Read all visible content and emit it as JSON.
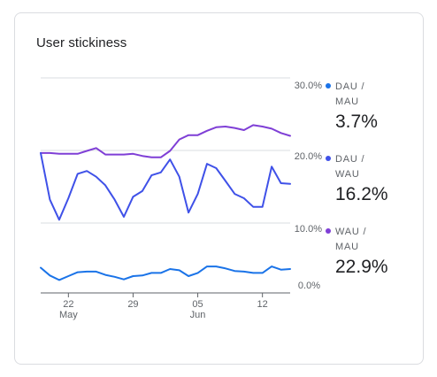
{
  "card": {
    "title": "User stickiness"
  },
  "legend": [
    {
      "label": "DAU / MAU",
      "value": "3.7%",
      "color": "#1a73e8"
    },
    {
      "label": "DAU / WAU",
      "value": "16.2%",
      "color": "#3f51e8"
    },
    {
      "label": "WAU / MAU",
      "value": "22.9%",
      "color": "#7f3fd6"
    }
  ],
  "chart_data": {
    "type": "line",
    "title": "User stickiness",
    "xlabel": "",
    "ylabel": "",
    "y_ticks": [
      "30.0%",
      "20.0%",
      "10.0%",
      "0.0%"
    ],
    "ylim": [
      0,
      30
    ],
    "x_tick_labels": [
      {
        "day": "22",
        "month": "May",
        "index": 3
      },
      {
        "day": "29",
        "month": "",
        "index": 10
      },
      {
        "day": "05",
        "month": "Jun",
        "index": 17
      },
      {
        "day": "12",
        "month": "",
        "index": 24
      }
    ],
    "grid": "horizontal",
    "legend_position": "right",
    "series": [
      {
        "name": "WAU / MAU",
        "color": "#7f3fd6",
        "values": [
          20.5,
          20.5,
          20.4,
          20.4,
          20.4,
          20.8,
          21.2,
          20.3,
          20.3,
          20.3,
          20.4,
          20.1,
          19.9,
          19.9,
          20.8,
          22.4,
          23.0,
          23.0,
          23.6,
          24.1,
          24.2,
          24.0,
          23.7,
          24.4,
          24.2,
          23.9,
          23.3,
          22.9
        ]
      },
      {
        "name": "DAU / WAU",
        "color": "#3f51e8",
        "values": [
          20.5,
          14.0,
          11.2,
          14.2,
          17.6,
          18.0,
          17.2,
          16.0,
          14.0,
          11.6,
          14.4,
          15.2,
          17.4,
          17.8,
          19.6,
          17.2,
          12.2,
          14.8,
          19.0,
          18.4,
          16.6,
          14.8,
          14.2,
          13.0,
          13.0,
          18.6,
          16.3,
          16.2
        ]
      },
      {
        "name": "DAU / MAU",
        "color": "#1a73e8",
        "values": [
          3.9,
          2.7,
          2.0,
          2.6,
          3.2,
          3.3,
          3.3,
          2.8,
          2.5,
          2.1,
          2.6,
          2.7,
          3.1,
          3.1,
          3.7,
          3.5,
          2.6,
          3.1,
          4.1,
          4.1,
          3.8,
          3.4,
          3.3,
          3.1,
          3.1,
          4.1,
          3.6,
          3.7
        ]
      }
    ],
    "panels": [
      {
        "series": [
          "WAU / MAU",
          "DAU / WAU"
        ],
        "y_top": "30.0%",
        "y_bottom": "10.0%"
      },
      {
        "series": [
          "DAU / MAU"
        ],
        "y_top": "10.0%",
        "y_bottom": "0.0%"
      }
    ]
  }
}
